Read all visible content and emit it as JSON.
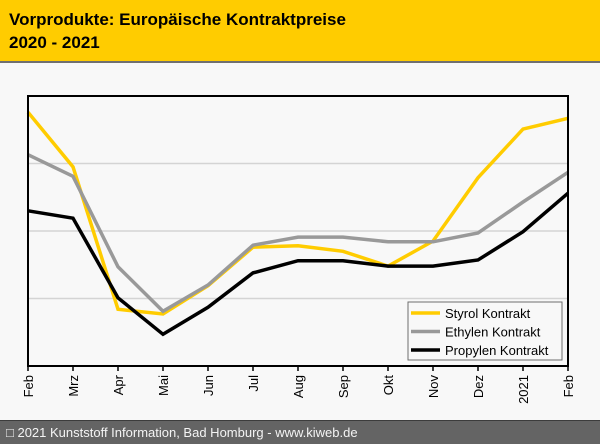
{
  "header": {
    "title_line1": "Vorprodukte: Europäische Kontraktpreise",
    "title_line2": "2020 - 2021"
  },
  "footer": {
    "text": "□ 2021 Kunststoff Information, Bad Homburg - www.kiweb.de"
  },
  "chart_data": {
    "type": "line",
    "title": "Vorprodukte: Europäische Kontraktpreise 2020 - 2021",
    "xlabel": "",
    "ylabel": "",
    "y_units": "relative index (axis unlabeled; 4 gridline intervals)",
    "ylim": [
      0,
      4
    ],
    "grid": true,
    "legend_position": "bottom-right",
    "categories": [
      "Feb",
      "Mrz",
      "Apr",
      "Mai",
      "Jun",
      "Jul",
      "Aug",
      "Sep",
      "Okt",
      "Nov",
      "Dez",
      "2021",
      "Feb"
    ],
    "series": [
      {
        "name": "Styrol Kontrakt",
        "color": "#ffcc00",
        "values": [
          3.76,
          2.95,
          0.84,
          0.77,
          1.19,
          1.76,
          1.78,
          1.7,
          1.48,
          1.85,
          2.79,
          3.51,
          3.67
        ]
      },
      {
        "name": "Ethylen Kontrakt",
        "color": "#999999",
        "values": [
          3.13,
          2.81,
          1.47,
          0.81,
          1.2,
          1.79,
          1.91,
          1.91,
          1.84,
          1.84,
          1.97,
          2.43,
          2.87
        ]
      },
      {
        "name": "Propylen Kontrakt",
        "color": "#000000",
        "values": [
          2.3,
          2.19,
          1.01,
          0.47,
          0.87,
          1.38,
          1.56,
          1.56,
          1.48,
          1.48,
          1.57,
          1.99,
          2.56
        ]
      }
    ]
  }
}
